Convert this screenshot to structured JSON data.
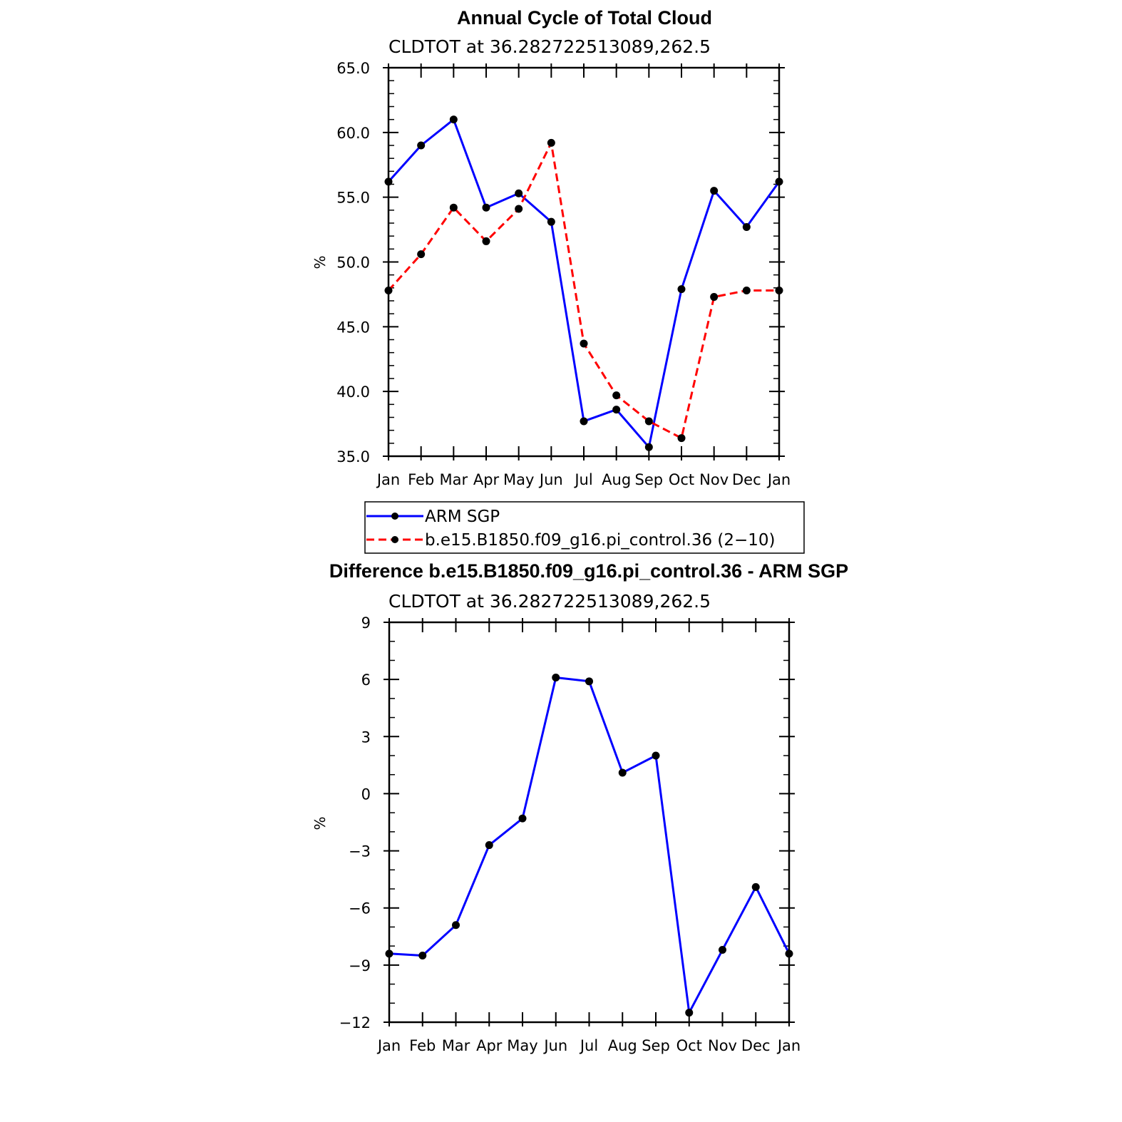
{
  "chart_data": [
    {
      "type": "line",
      "title": "Annual Cycle of Total Cloud",
      "subtitle": "CLDTOT at 36.282722513089,262.5",
      "ylabel": "%",
      "xlabel": "",
      "categories": [
        "Jan",
        "Feb",
        "Mar",
        "Apr",
        "May",
        "Jun",
        "Jul",
        "Aug",
        "Sep",
        "Oct",
        "Nov",
        "Dec",
        "Jan"
      ],
      "ylim": [
        35,
        65
      ],
      "yticks": [
        35,
        40,
        45,
        50,
        55,
        60,
        65
      ],
      "ytick_labels": [
        "35.0",
        "40.0",
        "45.0",
        "50.0",
        "55.0",
        "60.0",
        "65.0"
      ],
      "grid": false,
      "legend_position": "bottom",
      "series": [
        {
          "name": "ARM SGP",
          "color": "#0000ff",
          "style": "solid",
          "values": [
            56.2,
            59.0,
            61.0,
            54.2,
            55.3,
            53.1,
            37.7,
            38.6,
            35.7,
            47.9,
            55.5,
            52.7,
            56.2
          ]
        },
        {
          "name": "b.e15.B1850.f09_g16.pi_control.36 (2−10)",
          "color": "#ff0000",
          "style": "dashed",
          "values": [
            47.8,
            50.6,
            54.2,
            51.6,
            54.1,
            59.2,
            43.7,
            39.7,
            37.7,
            36.4,
            47.3,
            47.8,
            47.8
          ]
        }
      ]
    },
    {
      "type": "line",
      "title": "Difference b.e15.B1850.f09_g16.pi_control.36 - ARM SGP",
      "subtitle": "CLDTOT at 36.282722513089,262.5",
      "ylabel": "%",
      "xlabel": "",
      "categories": [
        "Jan",
        "Feb",
        "Mar",
        "Apr",
        "May",
        "Jun",
        "Jul",
        "Aug",
        "Sep",
        "Oct",
        "Nov",
        "Dec",
        "Jan"
      ],
      "ylim": [
        -12,
        9
      ],
      "yticks": [
        -12,
        -9,
        -6,
        -3,
        0,
        3,
        6,
        9
      ],
      "ytick_labels": [
        "−12",
        "−9",
        "−6",
        "−3",
        "0",
        "3",
        "6",
        "9"
      ],
      "grid": false,
      "series": [
        {
          "color": "#0000ff",
          "style": "solid",
          "values": [
            -8.4,
            -8.5,
            -6.9,
            -2.7,
            -1.3,
            6.1,
            5.9,
            1.1,
            2.0,
            -11.5,
            -8.2,
            -4.9,
            -8.4
          ]
        }
      ]
    }
  ]
}
